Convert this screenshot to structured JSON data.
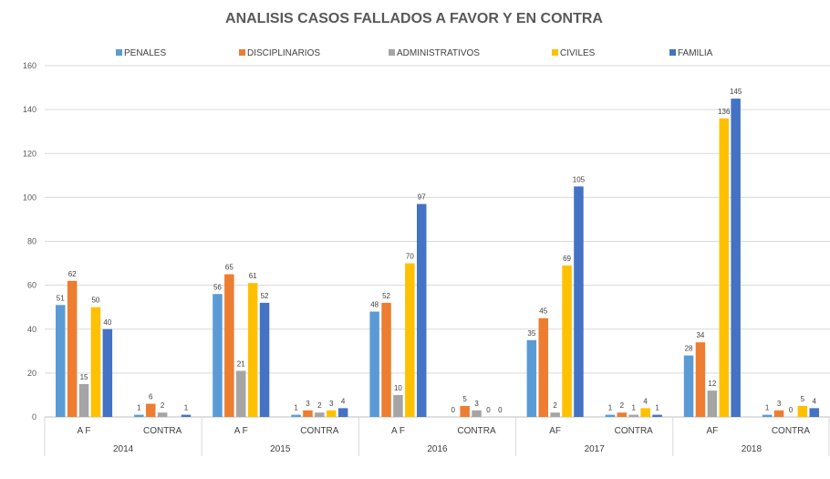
{
  "chart_data": {
    "type": "bar",
    "title": "ANALISIS CASOS FALLADOS A FAVOR Y EN CONTRA",
    "xlabel": "",
    "ylabel": "",
    "ylim": [
      0,
      160
    ],
    "yticks": [
      0,
      20,
      40,
      60,
      80,
      100,
      120,
      140,
      160
    ],
    "legend_position": "top",
    "grid": true,
    "groups": [
      {
        "year": "2014",
        "categories": [
          "A F",
          "CONTRA"
        ]
      },
      {
        "year": "2015",
        "categories": [
          "A F",
          "CONTRA"
        ]
      },
      {
        "year": "2016",
        "categories": [
          "A F",
          "CONTRA"
        ]
      },
      {
        "year": "2017",
        "categories": [
          "AF",
          "CONTRA"
        ]
      },
      {
        "year": "2018",
        "categories": [
          "AF",
          "CONTRA"
        ]
      }
    ],
    "series": [
      {
        "name": "PENALES",
        "color": "#5B9BD5",
        "values": [
          51,
          1,
          56,
          1,
          48,
          0,
          35,
          1,
          28,
          1
        ]
      },
      {
        "name": "DISCIPLINARIOS",
        "color": "#ED7D31",
        "values": [
          62,
          6,
          65,
          3,
          52,
          5,
          45,
          2,
          34,
          3
        ]
      },
      {
        "name": "ADMINISTRATIVOS",
        "color": "#A5A5A5",
        "values": [
          15,
          2,
          21,
          2,
          10,
          3,
          2,
          1,
          12,
          0
        ]
      },
      {
        "name": "CIVILES",
        "color": "#FFC000",
        "values": [
          50,
          null,
          61,
          3,
          70,
          0,
          69,
          4,
          136,
          5
        ]
      },
      {
        "name": "FAMILIA",
        "color": "#4472C4",
        "values": [
          40,
          1,
          52,
          4,
          97,
          0,
          105,
          1,
          145,
          4
        ]
      }
    ]
  }
}
